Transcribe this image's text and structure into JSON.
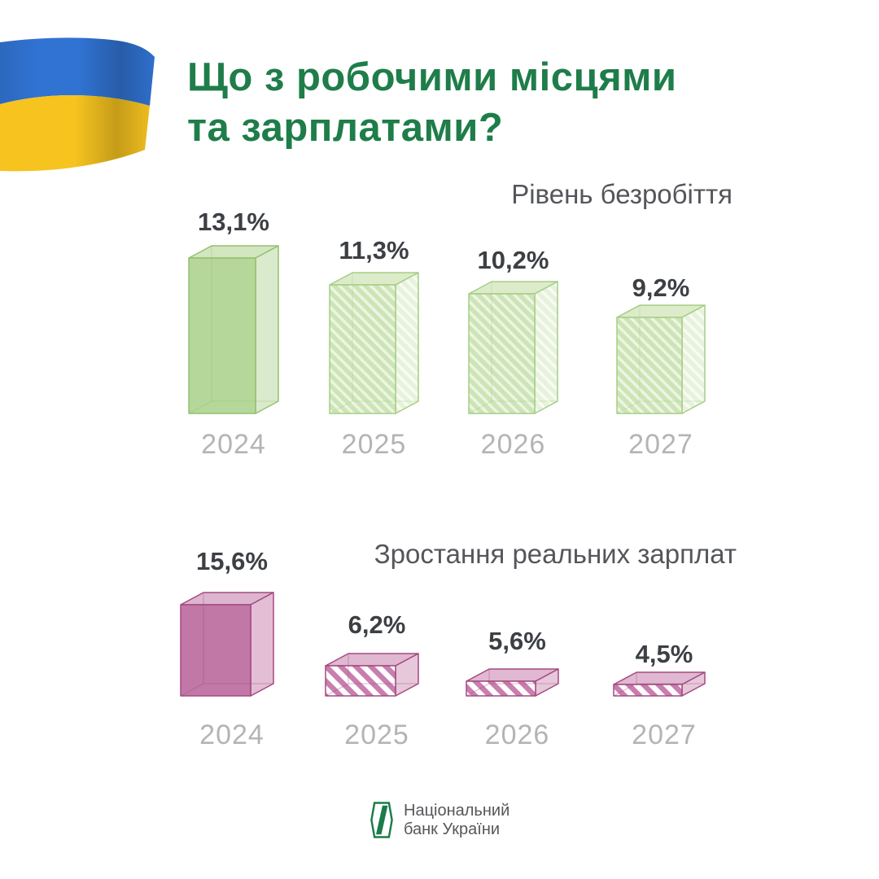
{
  "header": {
    "title_line1": "Що з робочими місцями",
    "title_line2": "та зарплатами?",
    "title_color": "#1e7d49",
    "flag": {
      "icon": "ukraine-flag",
      "blue": "#3173d3",
      "yellow": "#f6c31f"
    }
  },
  "chart_data": [
    {
      "type": "bar",
      "style": "3d-box",
      "title": "Рівень безробіття",
      "categories": [
        "2024",
        "2025",
        "2026",
        "2027"
      ],
      "values": [
        13.1,
        11.3,
        10.2,
        9.2
      ],
      "value_labels": [
        "13,1%",
        "11,3%",
        "10,2%",
        "9,2%"
      ],
      "unit": "%",
      "bar_color": "#b5d79a",
      "hatched": [
        false,
        true,
        true,
        true
      ],
      "legend_position": "none",
      "grid": false
    },
    {
      "type": "bar",
      "style": "3d-box",
      "title": "Зростання реальних зарплат",
      "categories": [
        "2024",
        "2025",
        "2026",
        "2027"
      ],
      "values": [
        15.6,
        6.2,
        5.6,
        4.5
      ],
      "value_labels": [
        "15,6%",
        "6,2%",
        "5,6%",
        "4,5%"
      ],
      "unit": "%",
      "bar_color": "#c178a6",
      "hatched": [
        false,
        true,
        true,
        true
      ],
      "legend_position": "none",
      "grid": false
    }
  ],
  "colors": {
    "chart_title": "#54565b",
    "value_label": "#3c3f43",
    "year_label": "#b2b4b6",
    "logo_green": "#1b7b4a"
  },
  "footer": {
    "org_line1": "Національний",
    "org_line2": "банк України",
    "logo": "nbu-logo"
  }
}
